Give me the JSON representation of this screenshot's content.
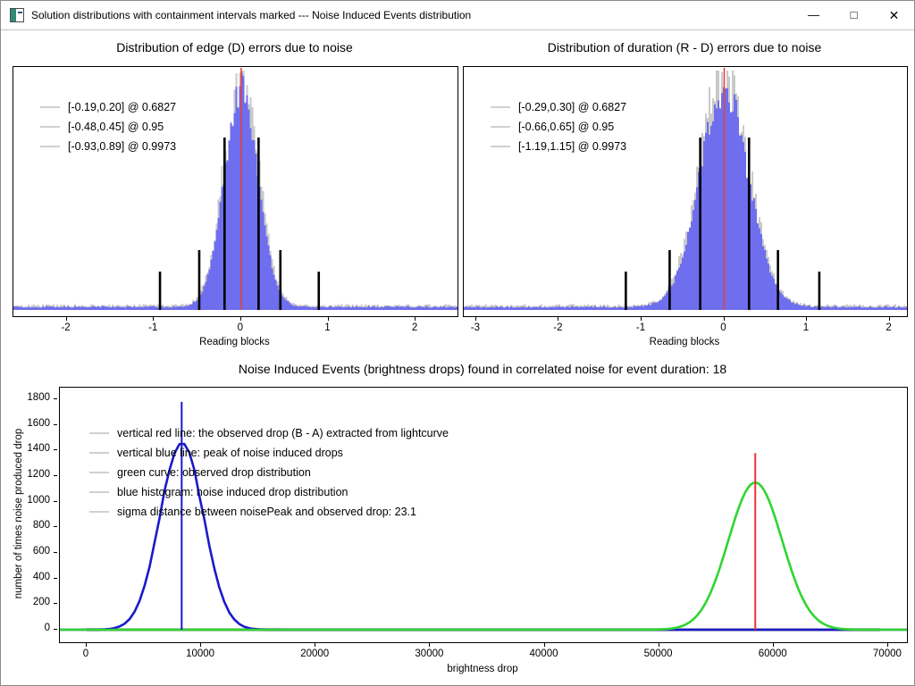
{
  "window": {
    "title": "Solution distributions with containment intervals marked --- Noise Induced Events distribution",
    "controls": {
      "minimize": "—",
      "maximize": "□",
      "close": "✕"
    }
  },
  "colors": {
    "histogram_blue": "#6e6eee",
    "histogram_gray": "#c9c9c9",
    "center_line_red": "#e04343",
    "interval_line_black": "#000000",
    "noise_curve_blue": "#1a1acc",
    "observed_curve_green": "#2fd52f",
    "observed_drop_red": "#ee3030",
    "baseline_gray": "#c8c8c8",
    "legend_marker_gray": "#d0d0d0"
  },
  "chart_data": [
    {
      "id": "edge_errors",
      "type": "histogram",
      "title": "Distribution of edge (D) errors due to noise",
      "xlabel": "Reading blocks",
      "x_ticks": [
        -2,
        -1,
        0,
        1,
        2
      ],
      "xlim": [
        -2.61,
        2.48
      ],
      "red_line_x": 0,
      "distribution": {
        "center": 0,
        "sigma": 0.195,
        "peak_frac": 0.93
      },
      "intervals": [
        {
          "low": -0.19,
          "high": 0.2,
          "confidence": 0.6827,
          "label": "[-0.19,0.20] @ 0.6827",
          "line_frac": 0.72
        },
        {
          "low": -0.48,
          "high": 0.45,
          "confidence": 0.95,
          "label": "[-0.48,0.45] @ 0.95",
          "line_frac": 0.25
        },
        {
          "low": -0.93,
          "high": 0.89,
          "confidence": 0.9973,
          "label": "[-0.93,0.89] @ 0.9973",
          "line_frac": 0.16
        }
      ]
    },
    {
      "id": "duration_errors",
      "type": "histogram",
      "title": "Distribution of duration (R - D) errors due to noise",
      "xlabel": "Reading blocks",
      "x_ticks": [
        -3,
        -2,
        -1,
        0,
        1,
        2
      ],
      "xlim": [
        -3.15,
        2.21
      ],
      "red_line_x": 0,
      "distribution": {
        "center": 0,
        "sigma": 0.295,
        "peak_frac": 0.93
      },
      "intervals": [
        {
          "low": -0.29,
          "high": 0.3,
          "confidence": 0.6827,
          "label": "[-0.29,0.30] @ 0.6827",
          "line_frac": 0.72
        },
        {
          "low": -0.66,
          "high": 0.65,
          "confidence": 0.95,
          "label": "[-0.66,0.65] @ 0.95",
          "line_frac": 0.25
        },
        {
          "low": -1.19,
          "high": 1.15,
          "confidence": 0.9973,
          "label": "[-1.19,1.15] @ 0.9973",
          "line_frac": 0.16
        }
      ]
    },
    {
      "id": "noise_induced_events",
      "type": "line",
      "title": "Noise Induced Events (brightness drops) found in correlated noise for event duration: 18",
      "xlabel": "brightness drop",
      "ylabel": "number of times noise produced drop",
      "event_duration": 18,
      "sigma_distance": 23.1,
      "x_ticks": [
        0,
        10000,
        20000,
        30000,
        40000,
        50000,
        60000,
        70000
      ],
      "y_ticks": [
        0,
        200,
        400,
        600,
        800,
        1000,
        1200,
        1400,
        1600,
        1800
      ],
      "xlim": [
        -2340,
        71650
      ],
      "ylim": [
        -98,
        1891
      ],
      "series": [
        {
          "name": "noise induced drop distribution",
          "color": "#1a1acc",
          "shape": "gaussian",
          "center": 8300,
          "sigma": 1900,
          "peak": 1470,
          "jitter": true
        },
        {
          "name": "observed drop distribution",
          "color": "#2fd52f",
          "shape": "gaussian",
          "center": 58400,
          "sigma": 2350,
          "peak": 1150,
          "jitter": false
        }
      ],
      "vlines": [
        {
          "name": "peak of noise induced drops",
          "color": "#1a1acc",
          "x": 8300,
          "top": 1780
        },
        {
          "name": "observed drop (B - A)",
          "color": "#ee3030",
          "x": 58400,
          "top": 1380
        }
      ],
      "baseline": {
        "color": "#c8c8c8",
        "y": 0,
        "x_start": 0,
        "x_end": 69300
      },
      "legend": [
        "vertical red line: the observed drop (B - A) extracted from lightcurve",
        "vertical blue line: peak of noise induced drops",
        "green curve: observed drop distribution",
        "blue histogram: noise induced drop distribution",
        "sigma distance between noisePeak and observed drop: 23.1"
      ]
    }
  ]
}
